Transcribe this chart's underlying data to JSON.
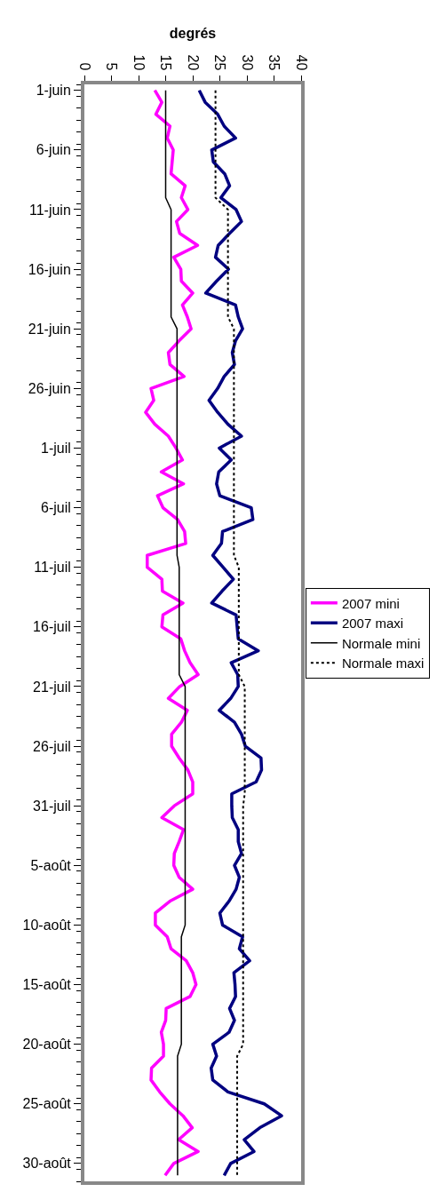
{
  "chart_data": {
    "type": "line",
    "orientation": "horizontal",
    "xlabel": "degrés",
    "categories": [
      "1-juin",
      null,
      null,
      null,
      null,
      "6-juin",
      null,
      null,
      null,
      null,
      "11-juin",
      null,
      null,
      null,
      null,
      "16-juin",
      null,
      null,
      null,
      null,
      "21-juin",
      null,
      null,
      null,
      null,
      "26-juin",
      null,
      null,
      null,
      null,
      "1-juil",
      null,
      null,
      null,
      null,
      "6-juil",
      null,
      null,
      null,
      null,
      "11-juil",
      null,
      null,
      null,
      null,
      "16-juil",
      null,
      null,
      null,
      null,
      "21-juil",
      null,
      null,
      null,
      null,
      "26-juil",
      null,
      null,
      null,
      null,
      "31-juil",
      null,
      null,
      null,
      null,
      "5-août",
      null,
      null,
      null,
      null,
      "10-août",
      null,
      null,
      null,
      null,
      "15-août",
      null,
      null,
      null,
      null,
      "20-août",
      null,
      null,
      null,
      null,
      "25-août",
      null,
      null,
      null,
      null,
      "30-août",
      null
    ],
    "series": [
      {
        "name": "2007 mini",
        "color": "#ff00ff",
        "line_style": "solid",
        "values": [
          13.0,
          14.3,
          13.2,
          15.8,
          15.3,
          16.4,
          16.2,
          16.0,
          18.6,
          17.9,
          19.1,
          17.0,
          17.6,
          20.9,
          16.5,
          17.8,
          17.9,
          20.0,
          18.1,
          19.0,
          19.7,
          17.5,
          15.5,
          15.8,
          18.4,
          12.3,
          12.8,
          11.3,
          13.0,
          15.5,
          16.9,
          18.1,
          14.2,
          18.3,
          13.5,
          14.5,
          17.2,
          18.5,
          18.7,
          11.6,
          11.6,
          14.3,
          14.4,
          18.2,
          14.5,
          14.3,
          17.8,
          18.5,
          19.5,
          21.0,
          17.6,
          15.5,
          19.0,
          17.9,
          16.1,
          16.1,
          17.5,
          19.1,
          20.0,
          20.0,
          16.6,
          14.3,
          18.3,
          17.5,
          16.6,
          16.5,
          17.5,
          20.0,
          15.8,
          13.1,
          13.1,
          15.3,
          16.0,
          18.8,
          20.0,
          20.6,
          19.5,
          15.1,
          15.0,
          14.2,
          14.6,
          14.6,
          12.4,
          12.3,
          13.9,
          15.8,
          18.2,
          19.9,
          17.4,
          21.0,
          16.5,
          14.9
        ]
      },
      {
        "name": "2007 maxi",
        "color": "#000080",
        "line_style": "solid",
        "values": [
          21.2,
          22.3,
          24.6,
          25.8,
          27.9,
          23.5,
          23.8,
          25.9,
          26.8,
          25.2,
          28.0,
          29.0,
          26.8,
          24.7,
          24.2,
          26.6,
          24.4,
          22.4,
          27.9,
          28.4,
          29.2,
          27.9,
          27.3,
          27.7,
          25.8,
          24.6,
          23.0,
          24.6,
          26.5,
          29.0,
          24.9,
          27.1,
          24.8,
          24.4,
          25.0,
          30.8,
          31.1,
          25.5,
          25.3,
          23.7,
          25.6,
          27.5,
          25.4,
          23.5,
          28.0,
          28.2,
          28.4,
          32.1,
          27.1,
          28.3,
          28.4,
          27.0,
          24.9,
          27.7,
          29.0,
          29.7,
          32.6,
          32.7,
          31.7,
          27.2,
          27.2,
          27.3,
          28.4,
          28.4,
          29.0,
          27.7,
          28.6,
          28.0,
          26.7,
          25.0,
          25.5,
          29.2,
          28.6,
          30.5,
          27.6,
          27.8,
          27.9,
          26.8,
          27.7,
          26.7,
          23.7,
          24.4,
          23.4,
          23.7,
          26.5,
          33.2,
          36.4,
          32.4,
          29.5,
          31.3,
          27.0,
          25.8
        ]
      },
      {
        "name": "Normale mini",
        "color": "#000000",
        "line_style": "solid",
        "values": [
          15.0,
          15.0,
          15.0,
          15.0,
          15.0,
          15.0,
          15.0,
          15.0,
          15.0,
          15.0,
          16.0,
          16.0,
          16.0,
          16.0,
          16.0,
          16.0,
          16.0,
          16.0,
          16.0,
          16.0,
          17.1,
          17.1,
          17.1,
          17.1,
          17.1,
          17.1,
          17.1,
          17.1,
          17.1,
          17.1,
          17.1,
          17.1,
          17.1,
          17.1,
          17.1,
          17.1,
          17.1,
          17.1,
          17.1,
          17.1,
          17.5,
          17.5,
          17.5,
          17.5,
          17.5,
          17.5,
          17.5,
          17.5,
          17.5,
          17.5,
          18.6,
          18.6,
          18.6,
          18.6,
          18.6,
          18.6,
          18.6,
          18.6,
          18.6,
          18.6,
          18.6,
          18.6,
          18.6,
          18.6,
          18.6,
          18.6,
          18.6,
          18.6,
          18.6,
          18.6,
          18.6,
          17.9,
          17.9,
          17.9,
          17.9,
          17.9,
          17.9,
          17.9,
          17.9,
          17.9,
          17.9,
          17.2,
          17.2,
          17.2,
          17.2,
          17.2,
          17.2,
          17.2,
          17.2,
          17.2,
          17.2,
          17.2
        ]
      },
      {
        "name": "Normale maxi",
        "color": "#000000",
        "line_style": "dotted",
        "values": [
          24.2,
          24.2,
          24.2,
          24.2,
          24.2,
          24.2,
          24.2,
          24.2,
          24.2,
          24.2,
          26.5,
          26.5,
          26.5,
          26.5,
          26.5,
          26.5,
          26.5,
          26.5,
          26.5,
          26.5,
          27.6,
          27.6,
          27.6,
          27.6,
          27.6,
          27.6,
          27.6,
          27.6,
          27.6,
          27.6,
          27.6,
          27.6,
          27.6,
          27.6,
          27.6,
          27.6,
          27.6,
          27.6,
          27.6,
          27.6,
          28.5,
          28.5,
          28.5,
          28.5,
          28.5,
          28.5,
          28.5,
          28.5,
          28.5,
          28.5,
          29.6,
          29.6,
          29.6,
          29.6,
          29.6,
          29.6,
          29.6,
          29.6,
          29.6,
          29.6,
          29.3,
          29.3,
          29.3,
          29.3,
          29.3,
          29.3,
          29.3,
          29.3,
          29.3,
          29.3,
          29.3,
          29.3,
          29.3,
          29.3,
          29.3,
          29.3,
          29.3,
          29.3,
          29.3,
          29.3,
          29.3,
          28.2,
          28.2,
          28.2,
          28.2,
          28.2,
          28.2,
          28.2,
          28.2,
          28.2,
          28.2,
          28.2
        ]
      }
    ],
    "xlim": [
      0,
      40
    ],
    "xticks": [
      0,
      5,
      10,
      15,
      20,
      25,
      30,
      35,
      40
    ],
    "grid": false,
    "legend": "right",
    "marker": "none"
  }
}
